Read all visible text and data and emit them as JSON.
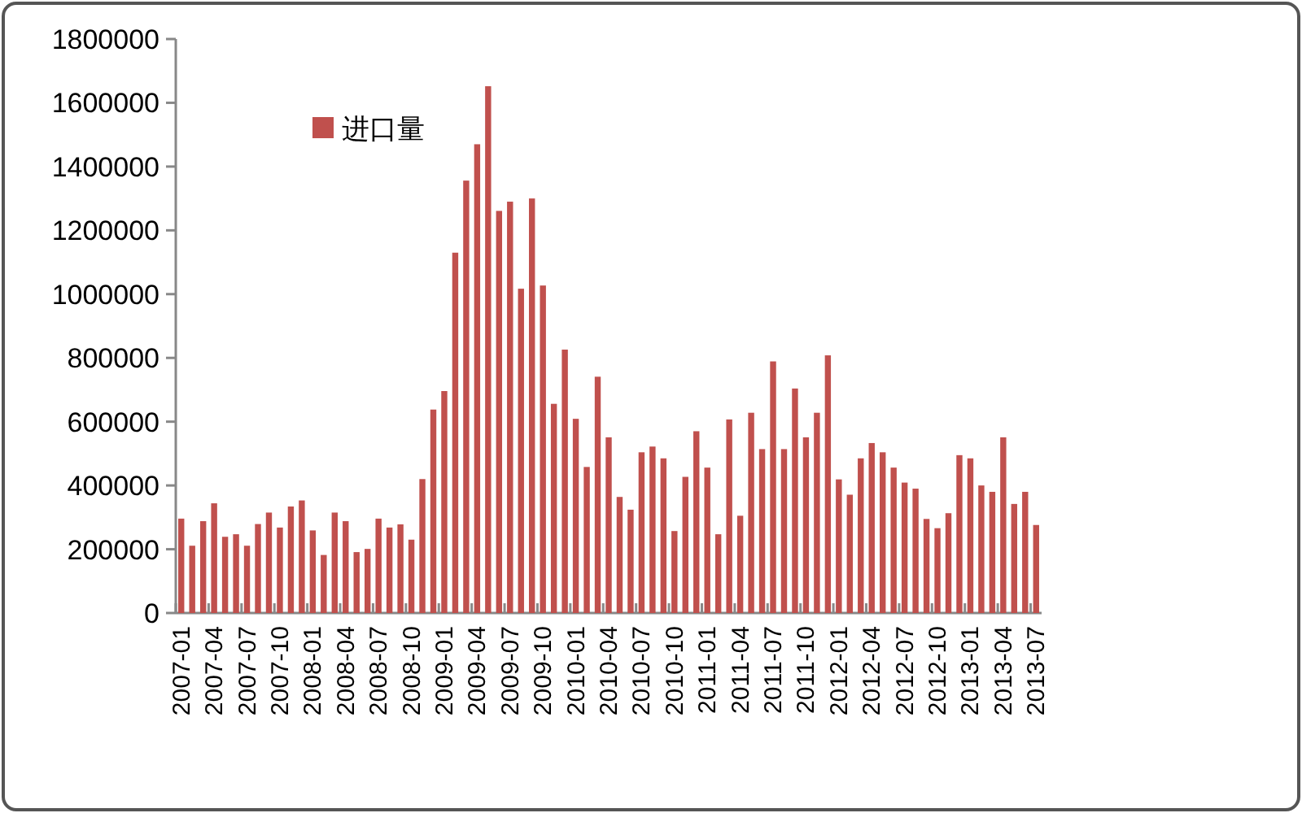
{
  "chart_data": {
    "type": "bar",
    "categories": [
      "2007-01",
      null,
      null,
      "2007-04",
      null,
      null,
      "2007-07",
      null,
      null,
      "2007-10",
      null,
      null,
      "2008-01",
      null,
      null,
      "2008-04",
      null,
      null,
      "2008-07",
      null,
      null,
      "2008-10",
      null,
      null,
      "2009-01",
      null,
      null,
      "2009-04",
      null,
      null,
      "2009-07",
      null,
      null,
      "2009-10",
      null,
      null,
      "2010-01",
      null,
      null,
      "2010-04",
      null,
      null,
      "2010-07",
      null,
      null,
      "2010-10",
      null,
      null,
      "2011-01",
      null,
      null,
      "2011-04",
      null,
      null,
      "2011-07",
      null,
      null,
      "2011-10",
      null,
      null,
      "2012-01",
      null,
      null,
      "2012-04",
      null,
      null,
      "2012-07",
      null,
      null,
      "2012-10",
      null,
      null,
      "2013-01",
      null,
      null,
      "2013-04",
      null,
      null,
      "2013-07"
    ],
    "series": [
      {
        "name": "进口量",
        "color": "#c0504d",
        "values": [
          296000,
          211000,
          288000,
          344000,
          239000,
          247000,
          211000,
          279000,
          315000,
          268000,
          334000,
          353000,
          259000,
          182000,
          315000,
          288000,
          191000,
          201000,
          296000,
          268000,
          278000,
          230000,
          420000,
          638000,
          696000,
          1130000,
          1356000,
          1470000,
          1652000,
          1261000,
          1290000,
          1017000,
          1300000,
          1027000,
          656000,
          826000,
          609000,
          458000,
          741000,
          551000,
          364000,
          324000,
          504000,
          522000,
          485000,
          257000,
          427000,
          570000,
          456000,
          247000,
          607000,
          305000,
          628000,
          514000,
          789000,
          514000,
          704000,
          551000,
          628000,
          808000,
          419000,
          371000,
          485000,
          533000,
          504000,
          456000,
          409000,
          390000,
          295000,
          266000,
          313000,
          495000,
          485000,
          400000,
          380000,
          551000,
          342000,
          380000,
          276000
        ]
      }
    ],
    "ylim": [
      0,
      1800000
    ],
    "yticks": [
      0,
      200000,
      400000,
      600000,
      800000,
      1000000,
      1200000,
      1400000,
      1600000,
      1800000
    ],
    "grid": false,
    "legend": "top left"
  }
}
